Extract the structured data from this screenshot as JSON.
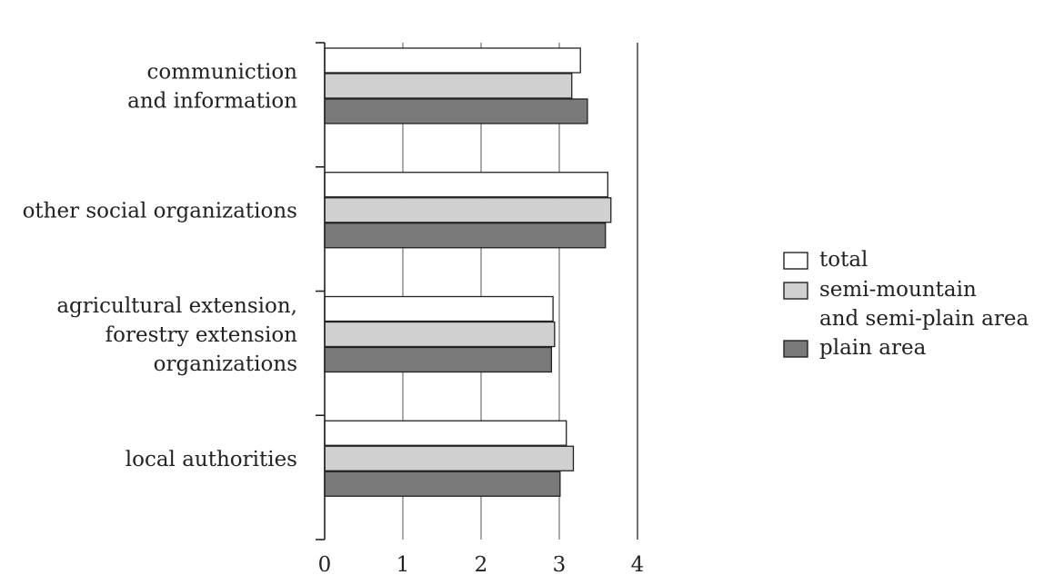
{
  "chart_data": {
    "type": "bar",
    "orientation": "horizontal",
    "categories": [
      [
        "communiction",
        "and information"
      ],
      [
        "other social organizations"
      ],
      [
        "agricultural extension,",
        "forestry extension",
        "organizations"
      ],
      [
        "local authorities"
      ]
    ],
    "series": [
      {
        "name": "total",
        "color": "#ffffff",
        "values": [
          3.27,
          3.62,
          2.92,
          3.09
        ]
      },
      {
        "name": "semi-mountain and semi-plain area",
        "color": "#d0d0d0",
        "values": [
          3.16,
          3.66,
          2.94,
          3.18
        ]
      },
      {
        "name": "plain area",
        "color": "#7a7a7a",
        "values": [
          3.36,
          3.59,
          2.9,
          3.01
        ]
      }
    ],
    "legend_labels": [
      [
        "total"
      ],
      [
        "semi-mountain",
        "and semi-plain area"
      ],
      [
        "plain area"
      ]
    ],
    "x_ticks": [
      "0",
      "1",
      "2",
      "3",
      "4"
    ],
    "xlim": [
      0,
      4
    ],
    "grid": "vertical",
    "legend_position": "right",
    "title": "",
    "xlabel": "",
    "ylabel": ""
  }
}
